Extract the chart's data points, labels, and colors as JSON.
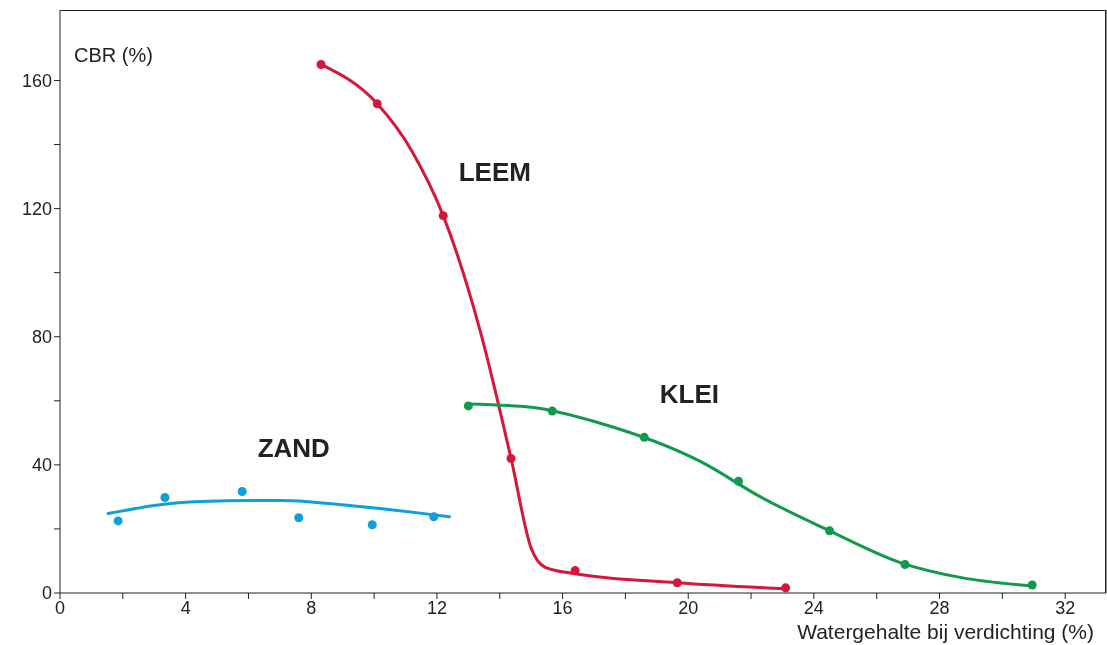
{
  "chart_data": {
    "type": "scatter",
    "xlabel": "Watergehalte bij verdichting (%)",
    "ylabel": "CBR (%)",
    "xlim": [
      0,
      33.3
    ],
    "ylim": [
      0,
      182
    ],
    "xticks": [
      0,
      {
        "value": 2,
        "label": null
      },
      4,
      {
        "value": 6,
        "label": null
      },
      8,
      {
        "value": 10,
        "label": null
      },
      12,
      {
        "value": 14,
        "label": null
      },
      16,
      {
        "value": 18,
        "label": null
      },
      20,
      {
        "value": 22,
        "label": null
      },
      24,
      {
        "value": 26,
        "label": null
      },
      28,
      {
        "value": 30,
        "label": null
      },
      32
    ],
    "yticks": [
      0,
      {
        "value": 20,
        "label": null
      },
      40,
      {
        "value": 60,
        "label": null
      },
      80,
      {
        "value": 100,
        "label": null
      },
      120,
      {
        "value": 140,
        "label": null
      },
      160
    ],
    "grid": false,
    "legend": false,
    "series": [
      {
        "type": "line",
        "marker": "none",
        "color": "#d6173a",
        "x": [
          8.31,
          10.1,
          11.2,
          12.2,
          13.4,
          14.36,
          15.0,
          15.45,
          16.4,
          19.65,
          23.1
        ],
        "values": [
          165,
          152.7,
          138,
          117.8,
          81,
          42,
          14,
          8,
          6,
          3.2,
          1.3
        ]
      },
      {
        "type": "line",
        "marker": "none",
        "color": "#119a4b",
        "x": [
          13,
          15,
          17.2,
          20.4,
          22.3,
          24.5,
          26.75,
          28.7,
          30.95
        ],
        "values": [
          59,
          58,
          53,
          41,
          30,
          19.4,
          9.5,
          4.8,
          2.2
        ]
      },
      {
        "type": "line",
        "marker": "none",
        "color": "#0ea0dd",
        "x": [
          1.53,
          4.46,
          7,
          9.55,
          12.4
        ],
        "values": [
          24.8,
          28.6,
          28.9,
          27,
          23.8
        ]
      },
      {
        "marker": "circle",
        "name": "LEEM",
        "color": "#d6173a",
        "x": [
          8.31,
          10.1,
          12.2,
          14.36,
          16.4,
          19.65,
          23.1
        ],
        "values": [
          165,
          152.7,
          117.8,
          42,
          7,
          3.2,
          1.6
        ]
      },
      {
        "marker": "circle",
        "name": "KLEI",
        "color": "#119a4b",
        "x": [
          13.0,
          15.67,
          18.6,
          21.6,
          24.5,
          26.9,
          30.95
        ],
        "values": [
          58.4,
          56.8,
          48.6,
          34.9,
          19.4,
          8.9,
          2.5
        ]
      },
      {
        "marker": "circle",
        "name": "ZAND",
        "color": "#0ea0dd",
        "x": [
          1.85,
          3.34,
          5.8,
          7.6,
          9.94,
          11.9
        ],
        "values": [
          22.5,
          29.8,
          31.7,
          23.5,
          21.3,
          23.8
        ]
      }
    ]
  }
}
